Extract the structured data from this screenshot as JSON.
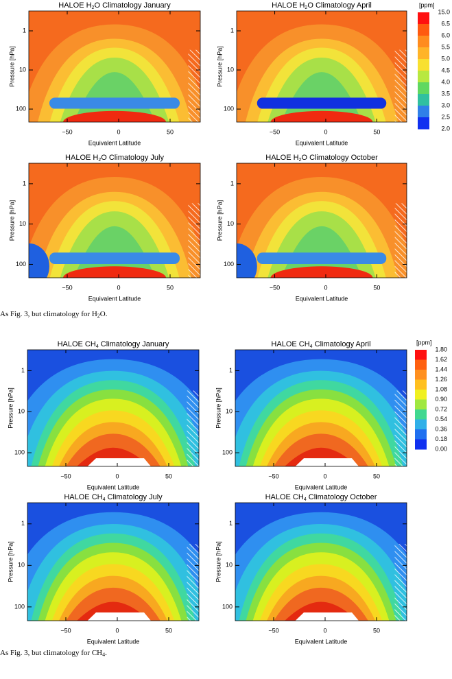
{
  "figures": [
    {
      "panels": [
        {
          "title": {
            "prefix": "HALOE H",
            "sub": "2",
            "suffix": "O Climatology January"
          }
        },
        {
          "title": {
            "prefix": "HALOE H",
            "sub": "2",
            "suffix": "O Climatology April"
          }
        },
        {
          "title": {
            "prefix": "HALOE H",
            "sub": "2",
            "suffix": "O Climatology July"
          }
        },
        {
          "title": {
            "prefix": "HALOE H",
            "sub": "2",
            "suffix": "O Climatology October"
          }
        }
      ],
      "axes": {
        "x_label": "Equivalent Latitude",
        "y_label": "Pressure [hPa]",
        "x_ticks": [
          "−50",
          "0",
          "50"
        ],
        "y_ticks": [
          "1",
          "10",
          "100"
        ]
      },
      "colorbar": {
        "unit": "[ppm]",
        "labels": [
          "15.0",
          "6.5",
          "6.0",
          "5.5",
          "5.0",
          "4.5",
          "4.0",
          "3.5",
          "3.0",
          "2.5",
          "2.0"
        ]
      },
      "caption": {
        "prefix": "As Fig. 3, but climatology for H",
        "sub": "2",
        "suffix": "O."
      }
    },
    {
      "panels": [
        {
          "title": {
            "prefix": "HALOE CH",
            "sub": "4",
            "suffix": " Climatology January"
          }
        },
        {
          "title": {
            "prefix": "HALOE CH",
            "sub": "4",
            "suffix": " Climatology April"
          }
        },
        {
          "title": {
            "prefix": "HALOE CH",
            "sub": "4",
            "suffix": " Climatology July"
          }
        },
        {
          "title": {
            "prefix": "HALOE CH",
            "sub": "4",
            "suffix": " Climatology October"
          }
        }
      ],
      "axes": {
        "x_label": "Equivalent Latitude",
        "y_label": "Pressure [hPa]",
        "x_ticks": [
          "−50",
          "0",
          "50"
        ],
        "y_ticks": [
          "1",
          "10",
          "100"
        ]
      },
      "colorbar": {
        "unit": "[ppm]",
        "labels": [
          "1.80",
          "1.62",
          "1.44",
          "1.26",
          "1.08",
          "0.90",
          "0.72",
          "0.54",
          "0.36",
          "0.18",
          "0.00"
        ]
      },
      "caption": {
        "prefix": "As Fig. 3, but climatology for CH",
        "sub": "4",
        "suffix": "."
      }
    }
  ]
}
